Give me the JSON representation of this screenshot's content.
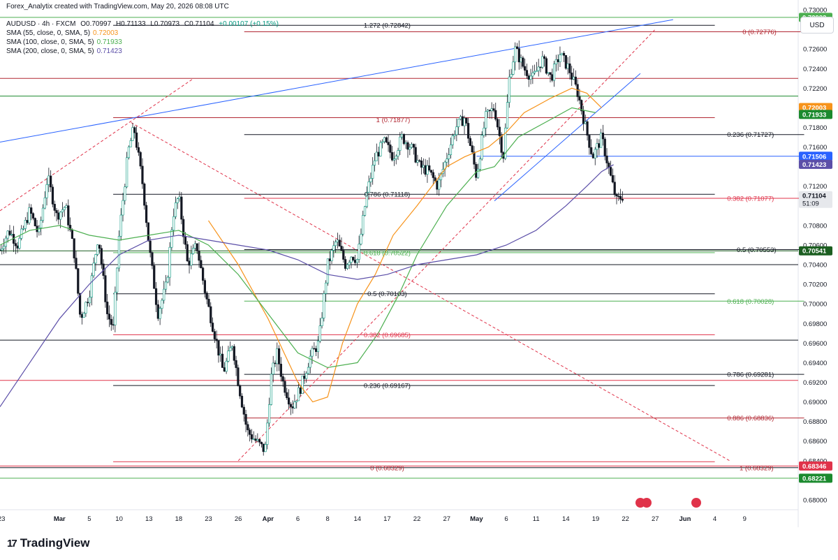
{
  "header": {
    "creator": "Forex_Analytix created with TradingView.com, May 20, 2026 08:08 UTC",
    "symbol": "AUDUSD · 4h · FXCM",
    "ohlc": {
      "open": "O0.70997",
      "high": "H0.71133",
      "low": "L0.70973",
      "close": "C0.71104",
      "change": "+0.00107 (+0.15%)"
    },
    "indicators": [
      {
        "label": "SMA (55, close, 0, SMA, 5)",
        "value": "0.72003",
        "color": "#f7931a"
      },
      {
        "label": "SMA (100, close, 0, SMA, 5)",
        "value": "0.71933",
        "color": "#4caf50"
      },
      {
        "label": "SMA (200, close, 0, SMA, 5)",
        "value": "0.71423",
        "color": "#5b4ea8"
      }
    ]
  },
  "currency": "USD",
  "brand": "TradingView",
  "chart_data": {
    "type": "line",
    "instrument": "AUDUSD",
    "timeframe": "4h",
    "ylim": [
      0.679,
      0.731
    ],
    "y_ticks": [
      "0.73000",
      "0.72800",
      "0.72600",
      "0.72400",
      "0.72200",
      "0.71800",
      "0.71600",
      "0.71200",
      "0.70800",
      "0.70600",
      "0.70400",
      "0.70200",
      "0.70000",
      "0.69800",
      "0.69600",
      "0.69400",
      "0.69200",
      "0.69000",
      "0.68800",
      "0.68600",
      "0.68400",
      "0.68000"
    ],
    "x_ticks": [
      {
        "label": "23",
        "t": 0.05,
        "bold": false
      },
      {
        "label": "Mar",
        "t": 2.0,
        "bold": true
      },
      {
        "label": "5",
        "t": 3.0,
        "bold": false
      },
      {
        "label": "10",
        "t": 4.0,
        "bold": false
      },
      {
        "label": "13",
        "t": 5.0,
        "bold": false
      },
      {
        "label": "18",
        "t": 6.0,
        "bold": false
      },
      {
        "label": "23",
        "t": 7.0,
        "bold": false
      },
      {
        "label": "26",
        "t": 8.0,
        "bold": false
      },
      {
        "label": "Apr",
        "t": 9.0,
        "bold": true
      },
      {
        "label": "6",
        "t": 10.0,
        "bold": false
      },
      {
        "label": "8",
        "t": 11.0,
        "bold": false
      },
      {
        "label": "14",
        "t": 12.0,
        "bold": false
      },
      {
        "label": "17",
        "t": 13.0,
        "bold": false
      },
      {
        "label": "22",
        "t": 14.0,
        "bold": false
      },
      {
        "label": "27",
        "t": 15.0,
        "bold": false
      },
      {
        "label": "May",
        "t": 16.0,
        "bold": true
      },
      {
        "label": "6",
        "t": 17.0,
        "bold": false
      },
      {
        "label": "11",
        "t": 18.0,
        "bold": false
      },
      {
        "label": "14",
        "t": 19.0,
        "bold": false
      },
      {
        "label": "19",
        "t": 20.0,
        "bold": false
      },
      {
        "label": "22",
        "t": 21.0,
        "bold": false
      },
      {
        "label": "27",
        "t": 22.0,
        "bold": false
      },
      {
        "label": "Jun",
        "t": 23.0,
        "bold": true
      },
      {
        "label": "4",
        "t": 24.0,
        "bold": false
      },
      {
        "label": "9",
        "t": 25.0,
        "bold": false
      }
    ],
    "price_path": [
      [
        0.0,
        0.7055
      ],
      [
        0.3,
        0.7075
      ],
      [
        0.6,
        0.706
      ],
      [
        1.0,
        0.7095
      ],
      [
        1.3,
        0.707
      ],
      [
        1.6,
        0.713
      ],
      [
        1.9,
        0.709
      ],
      [
        2.2,
        0.71
      ],
      [
        2.5,
        0.705
      ],
      [
        2.7,
        0.6985
      ],
      [
        3.0,
        0.701
      ],
      [
        3.3,
        0.707
      ],
      [
        3.6,
        0.699
      ],
      [
        3.8,
        0.6975
      ],
      [
        4.0,
        0.707
      ],
      [
        4.3,
        0.7155
      ],
      [
        4.5,
        0.718
      ],
      [
        4.8,
        0.712
      ],
      [
        5.0,
        0.706
      ],
      [
        5.3,
        0.699
      ],
      [
        5.6,
        0.702
      ],
      [
        5.8,
        0.709
      ],
      [
        6.0,
        0.711
      ],
      [
        6.3,
        0.704
      ],
      [
        6.6,
        0.706
      ],
      [
        6.9,
        0.701
      ],
      [
        7.2,
        0.697
      ],
      [
        7.5,
        0.693
      ],
      [
        7.8,
        0.696
      ],
      [
        8.0,
        0.692
      ],
      [
        8.3,
        0.687
      ],
      [
        8.6,
        0.686
      ],
      [
        8.9,
        0.685
      ],
      [
        9.1,
        0.6925
      ],
      [
        9.3,
        0.695
      ],
      [
        9.5,
        0.692
      ],
      [
        9.8,
        0.6895
      ],
      [
        10.1,
        0.6915
      ],
      [
        10.4,
        0.6945
      ],
      [
        10.7,
        0.696
      ],
      [
        11.0,
        0.704
      ],
      [
        11.3,
        0.7065
      ],
      [
        11.6,
        0.704
      ],
      [
        11.8,
        0.705
      ],
      [
        12.0,
        0.7045
      ],
      [
        12.3,
        0.711
      ],
      [
        12.6,
        0.715
      ],
      [
        12.9,
        0.7165
      ],
      [
        13.2,
        0.715
      ],
      [
        13.5,
        0.717
      ],
      [
        13.8,
        0.716
      ],
      [
        14.1,
        0.714
      ],
      [
        14.4,
        0.7135
      ],
      [
        14.7,
        0.712
      ],
      [
        15.0,
        0.715
      ],
      [
        15.3,
        0.718
      ],
      [
        15.6,
        0.719
      ],
      [
        15.8,
        0.716
      ],
      [
        16.0,
        0.713
      ],
      [
        16.3,
        0.719
      ],
      [
        16.6,
        0.72
      ],
      [
        16.9,
        0.715
      ],
      [
        17.1,
        0.723
      ],
      [
        17.3,
        0.726
      ],
      [
        17.6,
        0.724
      ],
      [
        17.9,
        0.723
      ],
      [
        18.2,
        0.725
      ],
      [
        18.5,
        0.723
      ],
      [
        18.8,
        0.7255
      ],
      [
        19.1,
        0.724
      ],
      [
        19.4,
        0.7215
      ],
      [
        19.7,
        0.7175
      ],
      [
        19.9,
        0.715
      ],
      [
        20.2,
        0.717
      ],
      [
        20.5,
        0.713
      ],
      [
        20.7,
        0.7105
      ],
      [
        20.9,
        0.711
      ]
    ],
    "series": [
      {
        "name": "SMA (55, close, 0, SMA, 5)",
        "color": "#f7931a",
        "values": [
          [
            7.0,
            0.7085
          ],
          [
            8.0,
            0.704
          ],
          [
            9.0,
            0.6985
          ],
          [
            10.0,
            0.692
          ],
          [
            10.5,
            0.69
          ],
          [
            11.0,
            0.6905
          ],
          [
            11.5,
            0.696
          ],
          [
            12.0,
            0.7
          ],
          [
            12.6,
            0.703
          ],
          [
            13.2,
            0.707
          ],
          [
            14.0,
            0.71
          ],
          [
            15.0,
            0.714
          ],
          [
            15.6,
            0.715
          ],
          [
            16.4,
            0.716
          ],
          [
            17.0,
            0.7175
          ],
          [
            17.6,
            0.7195
          ],
          [
            18.5,
            0.721
          ],
          [
            19.2,
            0.722
          ],
          [
            19.7,
            0.7215
          ],
          [
            20.2,
            0.72
          ]
        ]
      },
      {
        "name": "SMA (100, close, 0, SMA, 5)",
        "color": "#4caf50",
        "values": [
          [
            0.0,
            0.706
          ],
          [
            1.0,
            0.7075
          ],
          [
            2.0,
            0.708
          ],
          [
            3.0,
            0.707
          ],
          [
            4.0,
            0.7065
          ],
          [
            5.0,
            0.707
          ],
          [
            6.0,
            0.7075
          ],
          [
            7.0,
            0.706
          ],
          [
            8.0,
            0.703
          ],
          [
            9.0,
            0.699
          ],
          [
            10.0,
            0.695
          ],
          [
            11.0,
            0.6935
          ],
          [
            12.0,
            0.694
          ],
          [
            12.7,
            0.697
          ],
          [
            13.4,
            0.701
          ],
          [
            14.0,
            0.705
          ],
          [
            15.0,
            0.71
          ],
          [
            16.0,
            0.7135
          ],
          [
            16.6,
            0.714
          ],
          [
            17.4,
            0.717
          ],
          [
            18.3,
            0.7185
          ],
          [
            19.2,
            0.72
          ],
          [
            20.0,
            0.7195
          ]
        ]
      },
      {
        "name": "SMA (200, close, 0, SMA, 5)",
        "color": "#5b4ea8",
        "values": [
          [
            0.0,
            0.6895
          ],
          [
            1.0,
            0.694
          ],
          [
            2.0,
            0.6985
          ],
          [
            3.0,
            0.702
          ],
          [
            4.0,
            0.705
          ],
          [
            5.0,
            0.7065
          ],
          [
            6.0,
            0.707
          ],
          [
            7.0,
            0.7065
          ],
          [
            8.0,
            0.706
          ],
          [
            9.0,
            0.7055
          ],
          [
            10.0,
            0.7045
          ],
          [
            11.0,
            0.703
          ],
          [
            12.0,
            0.7025
          ],
          [
            13.0,
            0.703
          ],
          [
            14.0,
            0.704
          ],
          [
            15.0,
            0.7045
          ],
          [
            16.0,
            0.705
          ],
          [
            17.0,
            0.706
          ],
          [
            18.0,
            0.7075
          ],
          [
            19.0,
            0.71
          ],
          [
            19.7,
            0.712
          ],
          [
            20.2,
            0.7135
          ],
          [
            20.6,
            0.7142
          ]
        ]
      }
    ],
    "horizontal_levels": [
      {
        "price": 0.72923,
        "color": "#4caf50"
      },
      {
        "price": 0.72842,
        "color": "#131722",
        "t_start": 3.8,
        "t_end": 24.0
      },
      {
        "price": 0.72776,
        "color": "#b22833",
        "t_start": 8.2,
        "t_end": 27.0
      },
      {
        "price": 0.723,
        "color": "#b22833"
      },
      {
        "price": 0.7212,
        "color": "#1b8a2e"
      },
      {
        "price": 0.719,
        "color": "#b22833",
        "t_start": 3.8,
        "t_end": 24.0
      },
      {
        "price": 0.71727,
        "color": "#131722",
        "t_start": 8.2,
        "t_end": 27.0
      },
      {
        "price": 0.71506,
        "color": "#2962ff",
        "t_start": 16.0,
        "t_end": 27.0
      },
      {
        "price": 0.71118,
        "color": "#131722",
        "t_start": 3.8,
        "t_end": 24.0
      },
      {
        "price": 0.71077,
        "color": "#e0334a",
        "t_start": 8.2,
        "t_end": 27.0
      },
      {
        "price": 0.70541,
        "color": "#1b5e20"
      },
      {
        "price": 0.70553,
        "color": "#131722",
        "t_start": 8.2,
        "t_end": 27.0
      },
      {
        "price": 0.70522,
        "color": "#4caf50",
        "t_start": 3.8,
        "t_end": 24.0
      },
      {
        "price": 0.704,
        "color": "#131722"
      },
      {
        "price": 0.70103,
        "color": "#131722",
        "t_start": 3.8,
        "t_end": 24.0
      },
      {
        "price": 0.70028,
        "color": "#4caf50",
        "t_start": 8.2,
        "t_end": 27.0
      },
      {
        "price": 0.69685,
        "color": "#e0334a",
        "t_start": 3.8,
        "t_end": 24.0
      },
      {
        "price": 0.6963,
        "color": "#131722"
      },
      {
        "price": 0.69281,
        "color": "#131722",
        "t_start": 8.2,
        "t_end": 27.0
      },
      {
        "price": 0.6922,
        "color": "#e0334a"
      },
      {
        "price": 0.69167,
        "color": "#131722",
        "t_start": 3.8,
        "t_end": 24.0
      },
      {
        "price": 0.68836,
        "color": "#b22833",
        "t_start": 8.2,
        "t_end": 27.0
      },
      {
        "price": 0.6839,
        "color": "#e0334a",
        "t_start": 3.8,
        "t_end": 24.0
      },
      {
        "price": 0.68346,
        "color": "#e0334a"
      },
      {
        "price": 0.68329,
        "color": "#131722"
      },
      {
        "price": 0.68221,
        "color": "#4caf50"
      }
    ],
    "annotations": [
      {
        "text": "1.272 (0.72842)",
        "t": 13.0,
        "price": 0.72842,
        "color": "#131722"
      },
      {
        "text": "0 (0.72776)",
        "t": 25.5,
        "price": 0.72776,
        "color": "#b22833"
      },
      {
        "text": "1 (0.71877)",
        "t": 13.2,
        "price": 0.71877,
        "color": "#b22833"
      },
      {
        "text": "0.236 (0.71727)",
        "t": 25.2,
        "price": 0.71727,
        "color": "#131722"
      },
      {
        "text": "0.786 (0.71118)",
        "t": 13.0,
        "price": 0.71118,
        "color": "#131722"
      },
      {
        "text": "0.382 (0.71077)",
        "t": 25.2,
        "price": 0.71077,
        "color": "#e0334a"
      },
      {
        "text": "0.618 (0.70522)",
        "t": 13.0,
        "price": 0.70522,
        "color": "#4caf50"
      },
      {
        "text": "0.5 (0.70553)",
        "t": 25.4,
        "price": 0.70553,
        "color": "#131722"
      },
      {
        "text": "0.5 (0.70103)",
        "t": 13.0,
        "price": 0.70103,
        "color": "#131722"
      },
      {
        "text": "0.618 (0.70028)",
        "t": 25.2,
        "price": 0.70028,
        "color": "#4caf50"
      },
      {
        "text": "0.382 (0.69685)",
        "t": 13.0,
        "price": 0.69685,
        "color": "#e0334a"
      },
      {
        "text": "0.786 (0.69281)",
        "t": 25.2,
        "price": 0.69281,
        "color": "#131722"
      },
      {
        "text": "0.236 (0.69167)",
        "t": 13.0,
        "price": 0.69167,
        "color": "#131722"
      },
      {
        "text": "0.886 (0.68836)",
        "t": 25.2,
        "price": 0.68836,
        "color": "#b22833"
      },
      {
        "text": "0 (0.68329)",
        "t": 13.0,
        "price": 0.68329,
        "color": "#b22833"
      },
      {
        "text": "1 (0.68329)",
        "t": 25.4,
        "price": 0.68329,
        "color": "#b22833"
      }
    ],
    "trendlines": [
      {
        "from": [
          0.0,
          0.7165
        ],
        "to": [
          22.6,
          0.729
        ],
        "color": "#2962ff",
        "dashed": false
      },
      {
        "from": [
          0.0,
          0.7095
        ],
        "to": [
          6.5,
          0.723
        ],
        "color": "#e0334a",
        "dashed": true
      },
      {
        "from": [
          4.4,
          0.7185
        ],
        "to": [
          24.5,
          0.684
        ],
        "color": "#e0334a",
        "dashed": true
      },
      {
        "from": [
          8.0,
          0.684
        ],
        "to": [
          22.0,
          0.728
        ],
        "color": "#e0334a",
        "dashed": true
      },
      {
        "from": [
          16.6,
          0.7105
        ],
        "to": [
          21.5,
          0.7235
        ],
        "color": "#2962ff",
        "dashed": false
      }
    ],
    "price_labels": [
      {
        "text": "0.72923",
        "price": 0.72923,
        "bg": "#4caf50",
        "fg": "#ffffff"
      },
      {
        "text": "0.72003",
        "price": 0.72003,
        "bg": "#f7931a",
        "fg": "#ffffff"
      },
      {
        "text": "0.71933",
        "price": 0.71933,
        "bg": "#1b8a2e",
        "fg": "#ffffff"
      },
      {
        "text": "0.71506",
        "price": 0.71506,
        "bg": "#2962ff",
        "fg": "#ffffff"
      },
      {
        "text": "0.71423",
        "price": 0.71423,
        "bg": "#5b4ea8",
        "fg": "#ffffff"
      },
      {
        "text": "0.71104",
        "price": 0.71104,
        "bg": "#e6e8ec",
        "fg": "#131722",
        "sub": "51:09"
      },
      {
        "text": "0.70541",
        "price": 0.70541,
        "bg": "#1b5e20",
        "fg": "#ffffff"
      },
      {
        "text": "0.68346",
        "price": 0.68346,
        "bg": "#e0334a",
        "fg": "#ffffff"
      },
      {
        "text": "0.68221",
        "price": 0.68221,
        "bg": "#1b8a2e",
        "fg": "#ffffff"
      }
    ]
  }
}
